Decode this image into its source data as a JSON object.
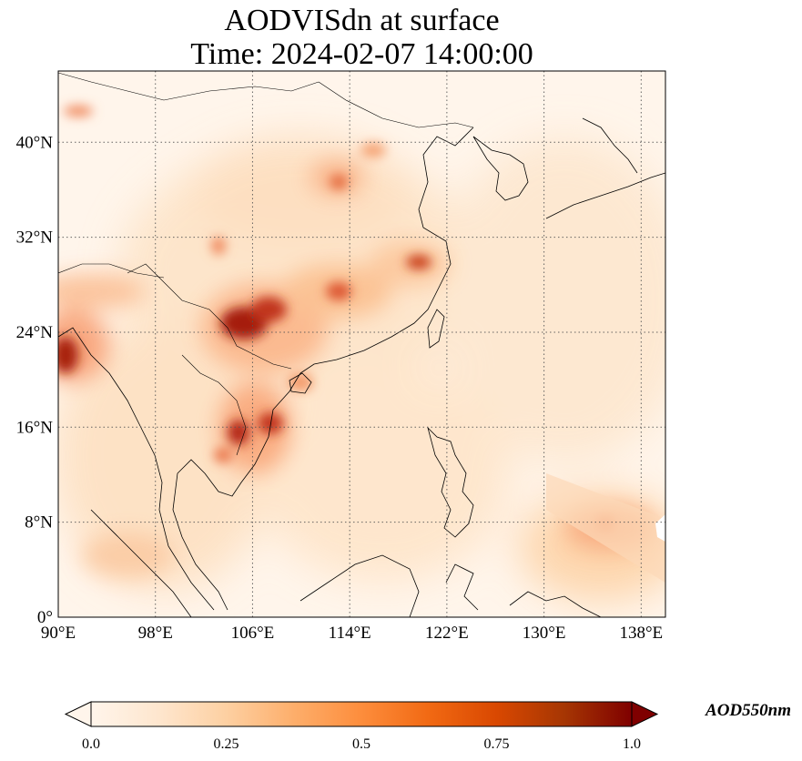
{
  "title": {
    "line1": "AODVISdn at surface",
    "line2": "Time: 2024-02-07 14:00:00"
  },
  "map": {
    "lon_range": [
      90,
      140
    ],
    "lat_range": [
      0,
      46
    ],
    "x_ticks": [
      "90°E",
      "98°E",
      "106°E",
      "114°E",
      "122°E",
      "130°E",
      "138°E"
    ],
    "y_ticks": [
      "0°",
      "8°N",
      "16°N",
      "24°N",
      "32°N",
      "40°N"
    ],
    "gridlines": true,
    "grid_style": "dotted",
    "background_color": "#fff5eb"
  },
  "colorbar": {
    "colormap": "OrRd",
    "colors": [
      "#fff5eb",
      "#fee6ce",
      "#fdd0a2",
      "#fdae6b",
      "#fd8d3c",
      "#f16913",
      "#d94801",
      "#a63603",
      "#7f0000"
    ],
    "tick_labels": [
      "0.0",
      "0.25",
      "0.5",
      "0.75",
      "1.0"
    ],
    "range": [
      0.0,
      1.0
    ],
    "extend": "both",
    "unit_label": "AOD550nm"
  }
}
